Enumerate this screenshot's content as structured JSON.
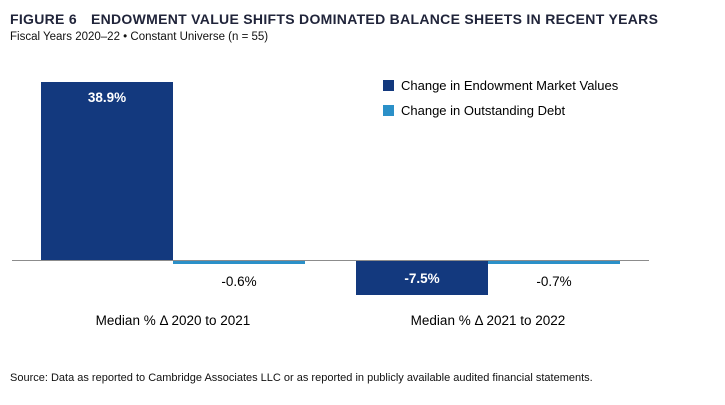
{
  "header": {
    "figure_label": "FIGURE 6",
    "title": "ENDOWMENT VALUE SHIFTS DOMINATED BALANCE SHEETS IN RECENT YEARS",
    "subtitle": "Fiscal Years 2020–22 • Constant Universe (n = 55)"
  },
  "chart_data": {
    "type": "bar",
    "categories": [
      "Median % Δ 2020 to 2021",
      "Median % Δ 2021 to 2022"
    ],
    "series": [
      {
        "name": "Change in Endowment Market Values",
        "values": [
          38.9,
          -7.5
        ],
        "labels": [
          "38.9%",
          "-7.5%"
        ],
        "color": "#13397E",
        "label_style": "inside-white"
      },
      {
        "name": "Change in Outstanding Debt",
        "values": [
          -0.6,
          -0.7
        ],
        "labels": [
          "-0.6%",
          "-0.7%"
        ],
        "color": "#2B90C8",
        "label_style": "outside-black"
      }
    ],
    "title": "FIGURE 6  ENDOWMENT VALUE SHIFTS DOMINATED BALANCE SHEETS IN RECENT YEARS",
    "xlabel": "",
    "ylabel": "",
    "ylim": [
      -10,
      42
    ],
    "grid": false,
    "legend_position": "top-right",
    "value_format": "percent",
    "axis_color": "#8C8C8C"
  },
  "source": "Source: Data as reported to Cambridge Associates LLC or as reported in publicly available audited financial statements."
}
